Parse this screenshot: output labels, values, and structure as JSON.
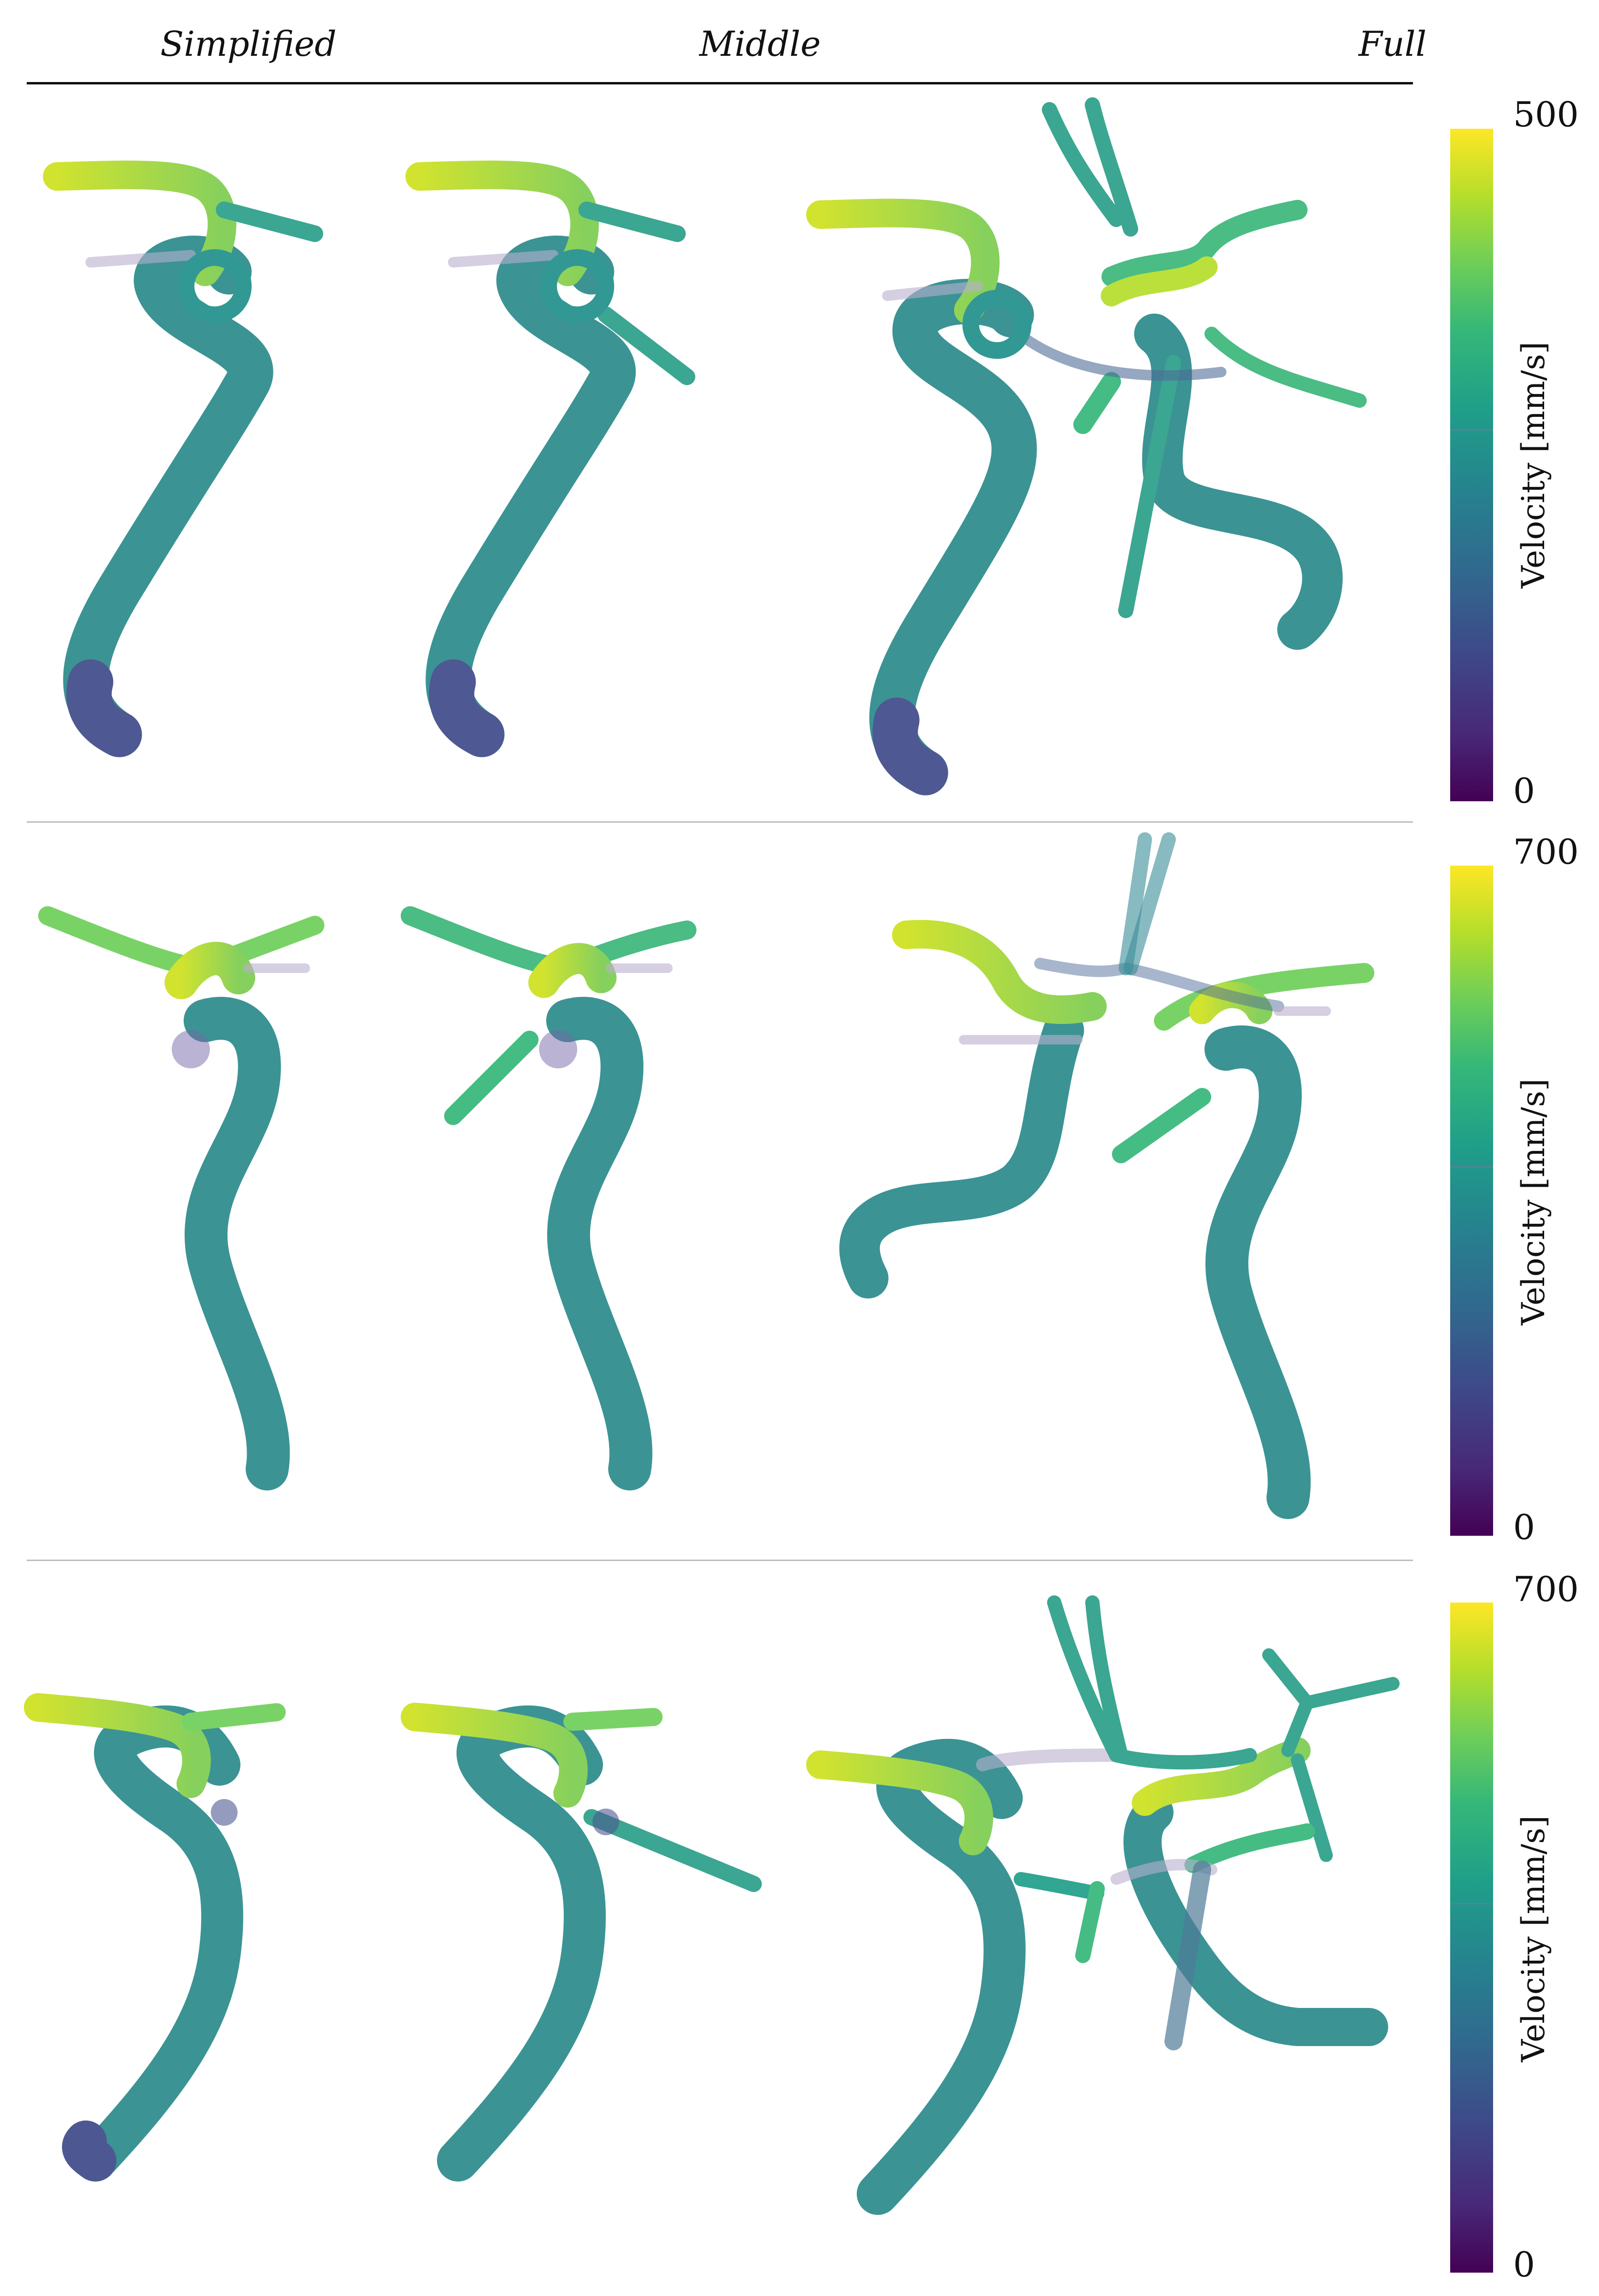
{
  "columns": {
    "simplified": "Simplified",
    "middle": "Middle",
    "full": "Full"
  },
  "colorbars": [
    {
      "max": "500",
      "min": "0",
      "label": "Velocity [mm/s]"
    },
    {
      "max": "700",
      "min": "0",
      "label": "Velocity [mm/s]"
    },
    {
      "max": "700",
      "min": "0",
      "label": "Velocity [mm/s]"
    }
  ],
  "colors": {
    "viridis_low": "#440154",
    "viridis_mid": "#21918c",
    "viridis_high": "#fde725"
  }
}
